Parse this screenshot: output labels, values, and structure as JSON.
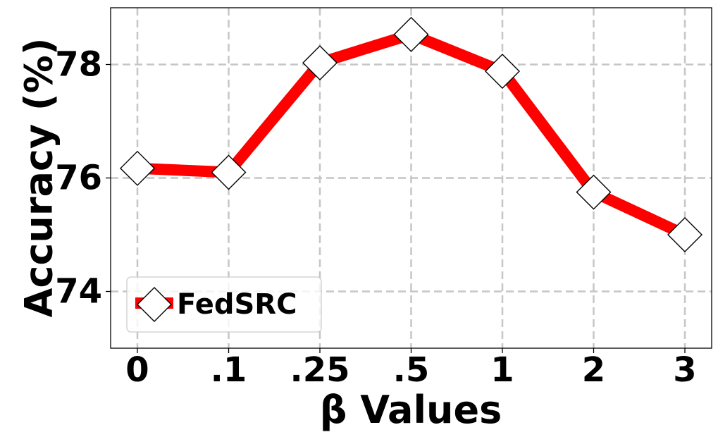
{
  "chart_data": {
    "type": "line",
    "title": "",
    "xlabel": "β Values",
    "ylabel": "Accuracy (%)",
    "categories": [
      "0",
      ".1",
      ".25",
      ".5",
      "1",
      "2",
      "3"
    ],
    "series": [
      {
        "name": "FedSRC",
        "values": [
          76.17,
          76.1,
          78.03,
          78.53,
          77.88,
          75.75,
          75.0
        ],
        "color": "#ff0000",
        "marker": "diamond",
        "marker_fill": "#ffffff",
        "marker_edge": "#000000"
      }
    ],
    "ylim": [
      73.0,
      79.0
    ],
    "yticks": [
      74,
      76,
      78
    ],
    "ytick_labels": [
      "74",
      "76",
      "78"
    ],
    "grid": true,
    "legend": "lower-left"
  }
}
